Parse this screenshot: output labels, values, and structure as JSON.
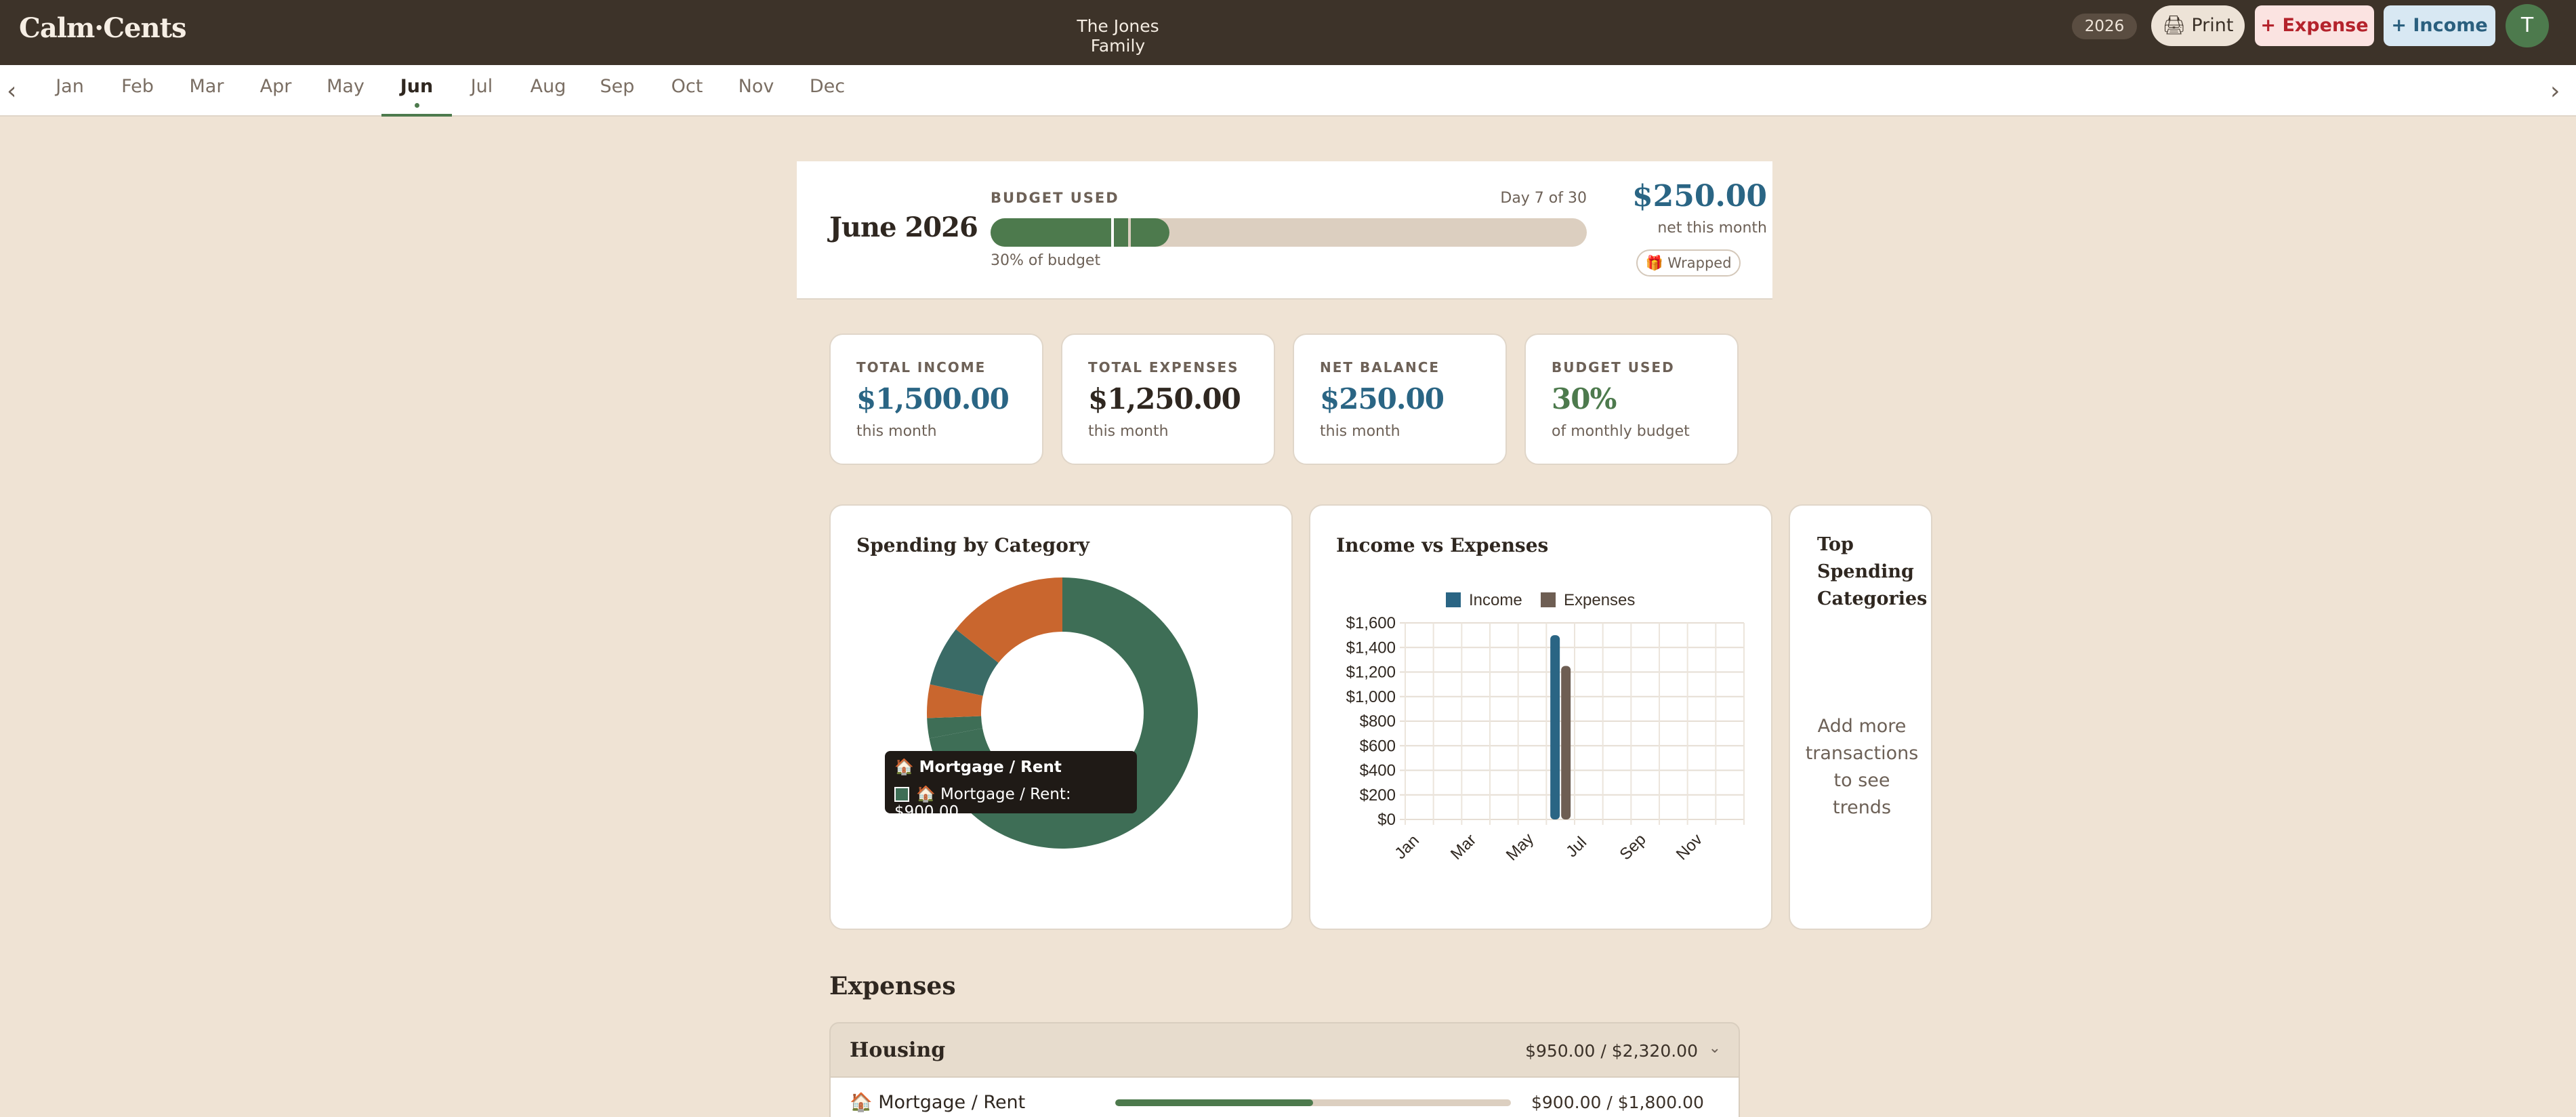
{
  "app": {
    "logo": "Calm·Cents",
    "family": "The Jones Family",
    "year": "2026",
    "print_label": "🖨 Print",
    "add_expense_label": "+ Expense",
    "add_income_label": "+ Income",
    "avatar_initial": "T"
  },
  "months": {
    "prev": "‹",
    "next": "›",
    "items": [
      "Jan",
      "Feb",
      "Mar",
      "Apr",
      "May",
      "Jun",
      "Jul",
      "Aug",
      "Sep",
      "Oct",
      "Nov",
      "Dec"
    ],
    "active": "Jun"
  },
  "budget_header": {
    "title": "June 2026",
    "used_label": "BUDGET USED",
    "day_text": "Day 7 of 30",
    "used_fraction": 0.3,
    "day_fraction": 0.233,
    "pct_text": "30% of budget",
    "net_amount": "$250.00",
    "net_label": "net this month",
    "wrapped_label": "🎁 Wrapped"
  },
  "stats": [
    {
      "label": "TOTAL INCOME",
      "value": "$1,500.00",
      "sub": "this month",
      "color": "#2a6584"
    },
    {
      "label": "TOTAL EXPENSES",
      "value": "$1,250.00",
      "sub": "this month",
      "color": "#2f2720"
    },
    {
      "label": "NET BALANCE",
      "value": "$250.00",
      "sub": "this month",
      "color": "#2a6584"
    },
    {
      "label": "BUDGET USED",
      "value": "30%",
      "sub": "of monthly budget",
      "color": "#4d7a4d"
    }
  ],
  "spending": {
    "title": "Spending by Category",
    "tooltip_title": "🏠 Mortgage / Rent",
    "tooltip_row": "🏠 Mortgage / Rent: $900.00"
  },
  "top_categories": {
    "title": "Top Spending Categories",
    "empty": "Add more transactions to see trends"
  },
  "expenses": {
    "title": "Expenses",
    "group_name": "Housing",
    "group_amount": "$950.00 / $2,320.00",
    "group_chevron": "⌄",
    "rows": [
      {
        "name": "🏠 Mortgage / Rent",
        "amount": "$900.00 / $1,800.00",
        "fraction": 0.5
      }
    ]
  },
  "chart_data": [
    {
      "type": "pie",
      "title": "Spending by Category",
      "donut": true,
      "slices": [
        {
          "label": "Mortgage / Rent",
          "value": 900,
          "color": "#3e6e56"
        },
        {
          "label": "",
          "value": 30,
          "color": "#3e6e56"
        },
        {
          "label": "",
          "value": 50,
          "color": "#c9662e"
        },
        {
          "label": "",
          "value": 90,
          "color": "#3a6b66"
        },
        {
          "label": "",
          "value": 180,
          "color": "#c9662e"
        }
      ]
    },
    {
      "type": "bar",
      "title": "Income vs Expenses",
      "categories": [
        "Jan",
        "Feb",
        "Mar",
        "Apr",
        "May",
        "Jun",
        "Jul",
        "Aug",
        "Sep",
        "Oct",
        "Nov",
        "Dec"
      ],
      "tick_labels": [
        "Jan",
        "Mar",
        "May",
        "Jul",
        "Sep",
        "Nov"
      ],
      "series": [
        {
          "name": "Income",
          "color": "#2a6584",
          "values": [
            0,
            0,
            0,
            0,
            0,
            1500,
            0,
            0,
            0,
            0,
            0,
            0
          ]
        },
        {
          "name": "Expenses",
          "color": "#6e5e53",
          "values": [
            0,
            0,
            0,
            0,
            0,
            1250,
            0,
            0,
            0,
            0,
            0,
            0
          ]
        }
      ],
      "ylim": [
        0,
        1600
      ],
      "yticks": [
        "$0",
        "$200",
        "$400",
        "$600",
        "$800",
        "$1,000",
        "$1,200",
        "$1,400",
        "$1,600"
      ],
      "grid": true,
      "legend": "top-center"
    }
  ]
}
